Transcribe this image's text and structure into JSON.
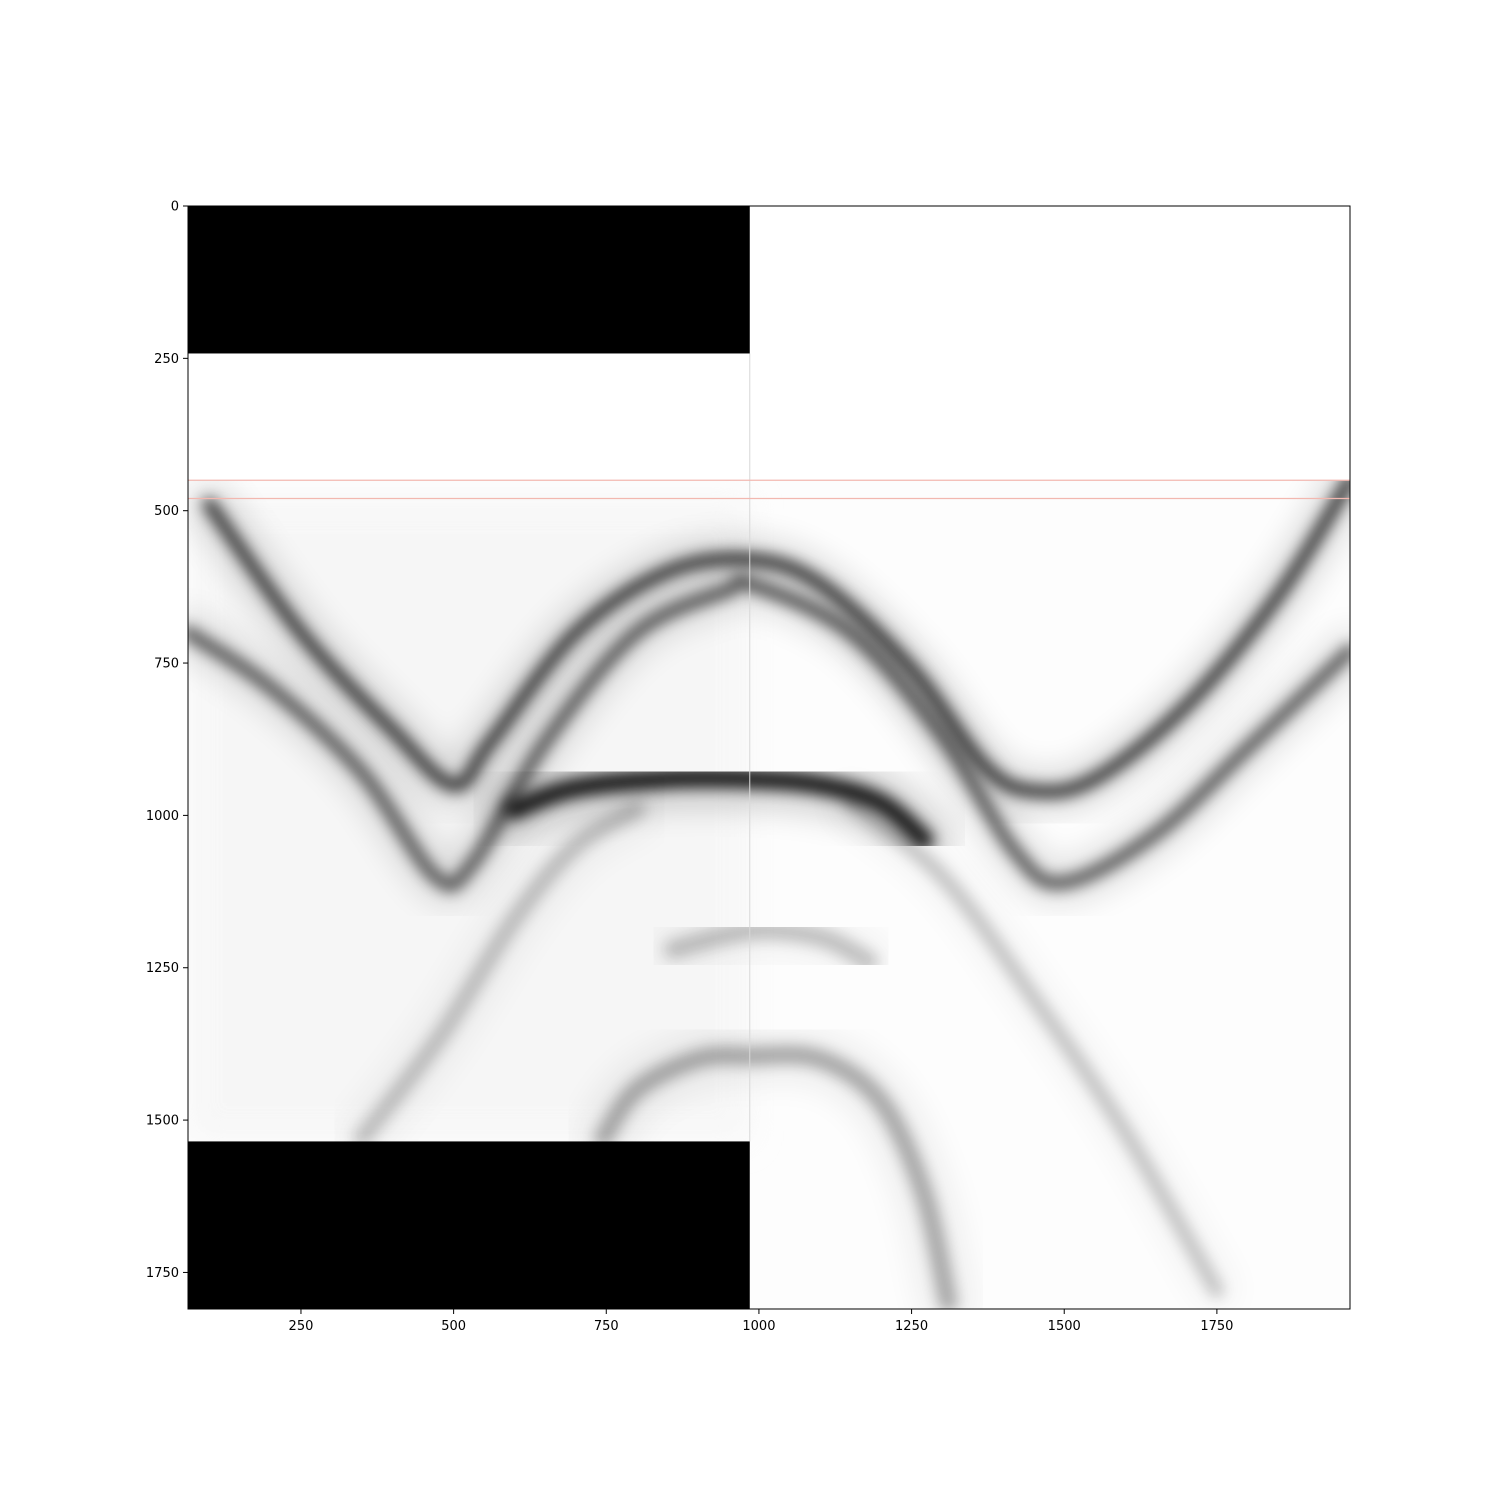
{
  "chart_data": {
    "type": "heatmap",
    "title": "",
    "xlabel": "",
    "ylabel": "",
    "xlim": [
      65,
      1968
    ],
    "ylim": [
      1810,
      0
    ],
    "y_axis_inverted": true,
    "colormap": "grayscale (white = low, black = high)",
    "grid": false,
    "legend": "none",
    "x_ticks": [
      250,
      500,
      750,
      1000,
      1250,
      1500,
      1750
    ],
    "y_ticks": [
      0,
      250,
      500,
      750,
      1000,
      1250,
      1500,
      1750
    ],
    "x_tick_labels": [
      "250",
      "500",
      "750",
      "1000",
      "1250",
      "1500",
      "1750"
    ],
    "y_tick_labels": [
      "0",
      "250",
      "500",
      "750",
      "1000",
      "1250",
      "1500",
      "1750"
    ],
    "masked_regions": [
      {
        "x": [
          65,
          985
        ],
        "y": [
          0,
          242
        ],
        "color": "#000000"
      },
      {
        "x": [
          65,
          985
        ],
        "y": [
          1535,
          1810
        ],
        "color": "#000000"
      }
    ],
    "blank_region": {
      "x": [
        65,
        985
      ],
      "y": [
        242,
        450
      ]
    },
    "panel_divider_x": 985,
    "reference_lines_y": [
      450,
      480
    ],
    "reference_line_color": "#f2b8b0",
    "colors": {
      "background": "#ffffff",
      "axis": "#000000",
      "mask": "#000000",
      "low": "#fdfdfd",
      "high": "#000000"
    },
    "curves": [
      {
        "name_key": "arch-upper",
        "points": [
          [
            100,
            490
          ],
          [
            250,
            700
          ],
          [
            400,
            860
          ],
          [
            500,
            950
          ],
          [
            560,
            880
          ],
          [
            700,
            700
          ],
          [
            850,
            600
          ],
          [
            985,
            580
          ],
          [
            1100,
            620
          ],
          [
            1250,
            760
          ],
          [
            1370,
            920
          ],
          [
            1450,
            960
          ],
          [
            1550,
            940
          ],
          [
            1700,
            820
          ],
          [
            1850,
            640
          ],
          [
            1968,
            450
          ]
        ],
        "intensity": 0.85,
        "width": 18
      },
      {
        "name_key": "arch-lower",
        "points": [
          [
            65,
            700
          ],
          [
            200,
            790
          ],
          [
            350,
            930
          ],
          [
            470,
            1100
          ],
          [
            530,
            1080
          ],
          [
            650,
            880
          ],
          [
            800,
            700
          ],
          [
            950,
            630
          ],
          [
            985,
            620
          ],
          [
            1150,
            700
          ],
          [
            1300,
            870
          ],
          [
            1420,
            1060
          ],
          [
            1500,
            1110
          ],
          [
            1650,
            1030
          ],
          [
            1800,
            890
          ],
          [
            1968,
            730
          ]
        ],
        "intensity": 0.7,
        "width": 18
      },
      {
        "name_key": "plateau-dark",
        "points": [
          [
            600,
            990
          ],
          [
            700,
            955
          ],
          [
            850,
            940
          ],
          [
            985,
            940
          ],
          [
            1100,
            950
          ],
          [
            1200,
            980
          ],
          [
            1270,
            1040
          ]
        ],
        "intensity": 1.0,
        "width": 26
      },
      {
        "name_key": "diag-left-faint",
        "points": [
          [
            350,
            1530
          ],
          [
            480,
            1360
          ],
          [
            600,
            1170
          ],
          [
            700,
            1050
          ],
          [
            800,
            990
          ]
        ],
        "intensity": 0.25,
        "width": 22
      },
      {
        "name_key": "diag-right-faint",
        "points": [
          [
            1150,
            980
          ],
          [
            1300,
            1100
          ],
          [
            1450,
            1300
          ],
          [
            1600,
            1520
          ],
          [
            1750,
            1780
          ]
        ],
        "intensity": 0.25,
        "width": 18
      },
      {
        "name_key": "arch-small",
        "points": [
          [
            860,
            1220
          ],
          [
            985,
            1190
          ],
          [
            1100,
            1200
          ],
          [
            1180,
            1240
          ]
        ],
        "intensity": 0.25,
        "width": 24
      },
      {
        "name_key": "arch-bottom",
        "points": [
          [
            745,
            1530
          ],
          [
            800,
            1450
          ],
          [
            900,
            1400
          ],
          [
            985,
            1395
          ],
          [
            1100,
            1400
          ],
          [
            1200,
            1470
          ],
          [
            1270,
            1620
          ],
          [
            1310,
            1800
          ]
        ],
        "intensity": 0.35,
        "width": 24
      }
    ]
  }
}
